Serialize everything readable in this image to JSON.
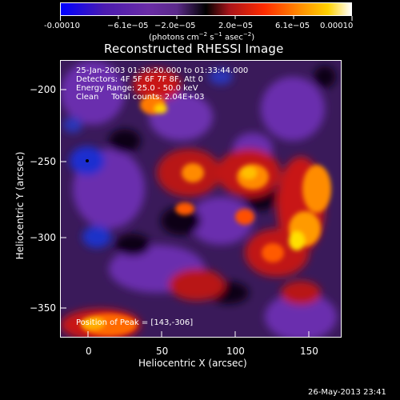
{
  "colorbar": {
    "ticks": [
      "-0.00010",
      "−6.1e−05",
      "−2.0e−05",
      "2.0e−05",
      "6.1e−05",
      "0.00010"
    ],
    "units_text": "(photons cm",
    "units_parts": [
      "(photons cm",
      "−2",
      " s",
      "−1",
      " asec",
      "−2",
      ")"
    ],
    "colors": [
      "#0000ff",
      "#5b2a8a",
      "#000000",
      "#ff2b00",
      "#ffd200",
      "#ffffff"
    ]
  },
  "title": "Reconstructed RHESSI Image",
  "info": {
    "line1": "25-Jan-2003 01:30:20.000 to 01:33:44.000",
    "line2": "Detectors: 4F 5F 6F 7F 8F, Att 0",
    "line3": "Energy Range: 25.0 - 50.0 keV",
    "line4": "Clean     Total counts: 2.04E+03",
    "peak": "Position of Peak = [143,-306]"
  },
  "axes": {
    "y_ticks": [
      "−200",
      "−250",
      "−300",
      "−350"
    ],
    "x_ticks": [
      "0",
      "50",
      "100",
      "150"
    ],
    "y_title": "Heliocentric Y (arcsec)",
    "x_title": "Heliocentric X (arcsec)"
  },
  "footer": "26-May-2013 23:41"
}
